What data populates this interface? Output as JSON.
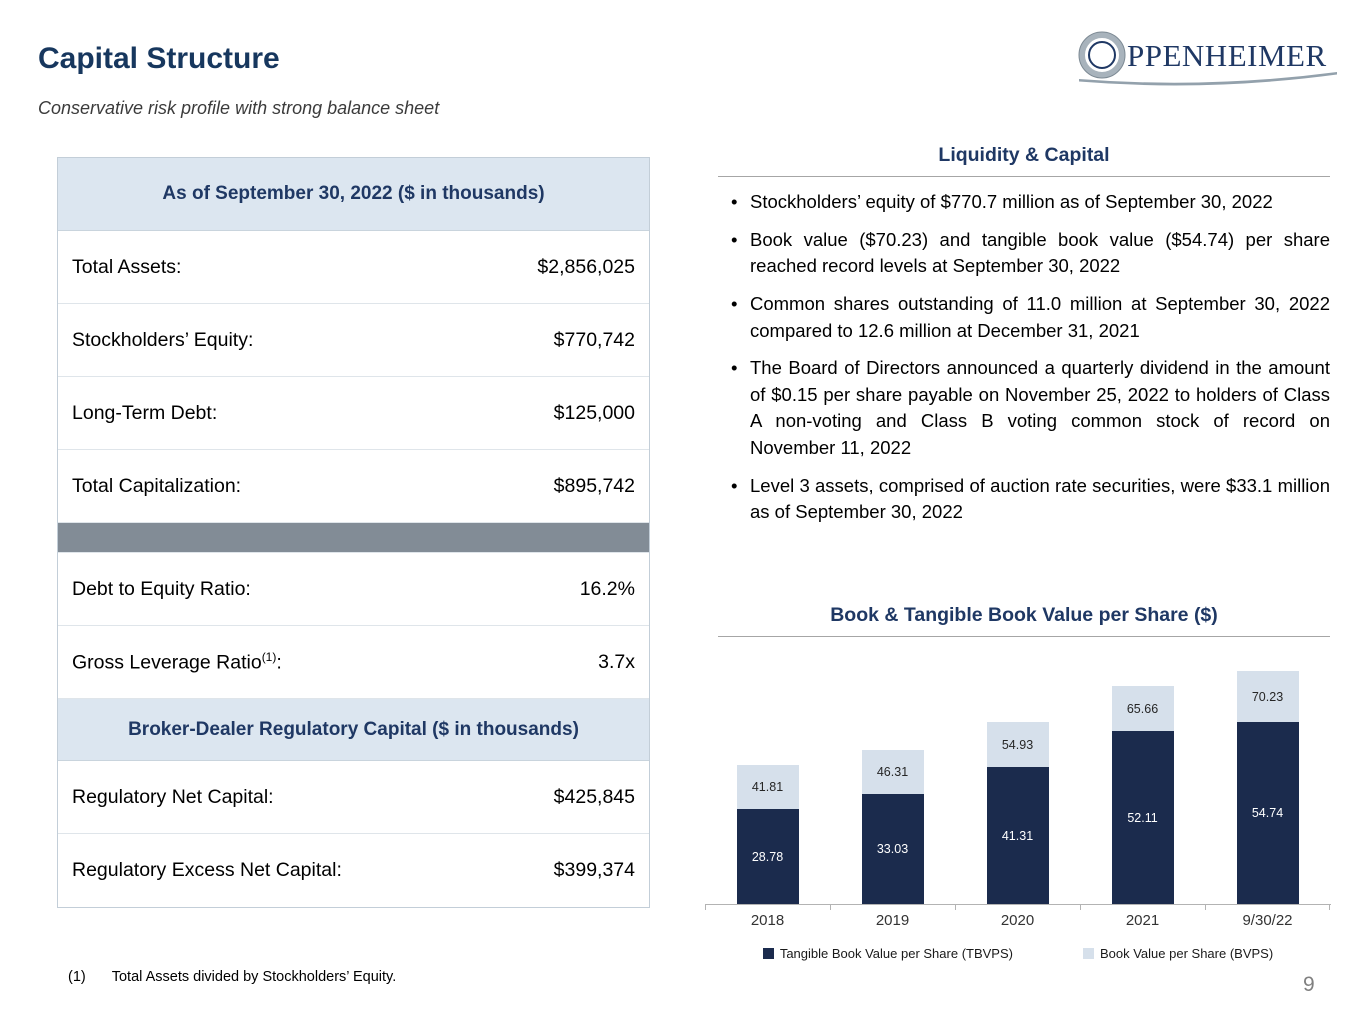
{
  "page": {
    "title": "Capital Structure",
    "subtitle": "Conservative risk profile with strong balance sheet",
    "page_number": "9",
    "footnote_marker": "(1)",
    "footnote_text": "Total Assets divided by Stockholders’ Equity."
  },
  "logo": {
    "text": "PPENHEIMER"
  },
  "colors": {
    "navy": "#1f3864",
    "table_header_bg": "#dce6f0",
    "divider_gray": "#828c96",
    "bar_dark": "#1b2b4d",
    "bar_light": "#d6e0eb"
  },
  "table": {
    "header1": "As of September 30, 2022 ($ in thousands)",
    "rows1": [
      {
        "label": "Total Assets:",
        "value": "$2,856,025"
      },
      {
        "label": "Stockholders’ Equity:",
        "value": "$770,742"
      },
      {
        "label": "Long-Term Debt:",
        "value": "$125,000"
      },
      {
        "label": "Total Capitalization:",
        "value": "$895,742"
      }
    ],
    "rows2": [
      {
        "label": "Debt to Equity Ratio:",
        "value": "16.2%"
      },
      {
        "label": "Gross Leverage Ratio",
        "sup": "(1)",
        "suffix": ":",
        "value": "3.7x"
      }
    ],
    "header2": "Broker-Dealer Regulatory Capital ($ in thousands)",
    "rows3": [
      {
        "label": "Regulatory Net Capital:",
        "value": "$425,845"
      },
      {
        "label": "Regulatory Excess Net Capital:",
        "value": "$399,374"
      }
    ]
  },
  "liquidity": {
    "title": "Liquidity & Capital",
    "bullets": [
      "Stockholders’ equity of $770.7 million as of September 30, 2022",
      "Book value ($70.23) and tangible book value ($54.74) per share reached record levels at September 30, 2022",
      "Common shares outstanding of 11.0 million at September 30, 2022 compared to 12.6 million at December 31, 2021",
      "The Board of Directors announced a quarterly dividend in the amount of $0.15 per share payable on November 25, 2022 to holders of Class A non-voting and Class B voting common stock of record on November 11, 2022",
      "Level 3 assets, comprised of auction rate securities, were $33.1 million as of September 30, 2022"
    ]
  },
  "chart_data": {
    "type": "bar",
    "stacked": true,
    "title": "Book & Tangible Book Value per Share ($)",
    "categories": [
      "2018",
      "2019",
      "2020",
      "2021",
      "9/30/22"
    ],
    "series": [
      {
        "name": "Tangible Book Value per Share (TBVPS)",
        "values": [
          28.78,
          33.03,
          41.31,
          52.11,
          54.74
        ],
        "color": "#1b2b4d"
      },
      {
        "name": "Book Value per Share (BVPS)",
        "values": [
          41.81,
          46.31,
          54.93,
          65.66,
          70.23
        ],
        "color": "#d6e0eb"
      }
    ],
    "xlabel": "",
    "ylabel": "",
    "ylim": [
      0,
      75
    ],
    "grid": false,
    "y_axis_visible": false,
    "legend_position": "bottom",
    "note": "Light segment drawn from TBVPS up to BVPS total; labels show series totals."
  }
}
